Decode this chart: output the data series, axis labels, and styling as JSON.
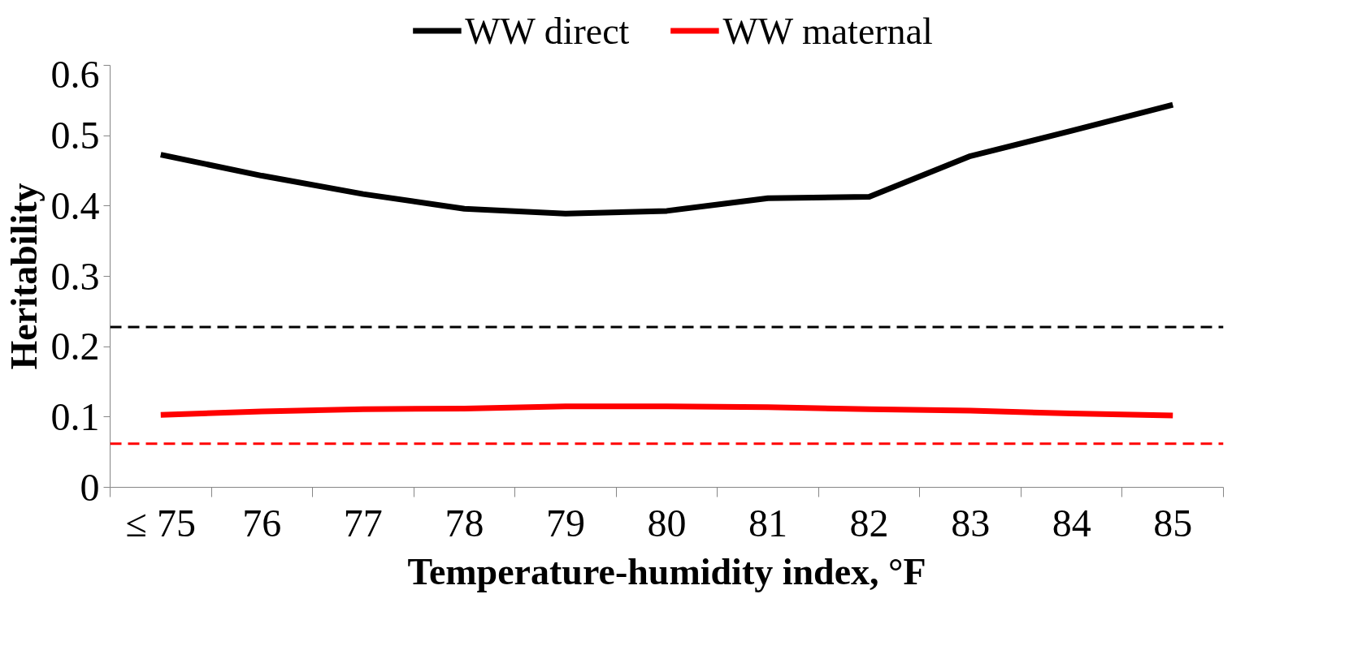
{
  "chart_data": {
    "type": "line",
    "xlabel": "Temperature-humidity index, °F",
    "ylabel": "Heritability",
    "categories": [
      "≤ 75",
      "76",
      "77",
      "78",
      "79",
      "80",
      "81",
      "82",
      "83",
      "84",
      "85"
    ],
    "series": [
      {
        "name": "WW direct",
        "color": "#000000",
        "values": [
          0.473,
          0.443,
          0.417,
          0.396,
          0.389,
          0.393,
          0.411,
          0.413,
          0.471,
          0.507,
          0.544
        ]
      },
      {
        "name": "WW maternal",
        "color": "#ff0000",
        "values": [
          0.103,
          0.108,
          0.111,
          0.112,
          0.115,
          0.115,
          0.114,
          0.111,
          0.109,
          0.105,
          0.102
        ]
      }
    ],
    "ref_lines": [
      {
        "axis": "y",
        "value": 0.228,
        "label": null,
        "color": "#000000",
        "line_style": "dashed"
      },
      {
        "axis": "y",
        "value": 0.062,
        "label": null,
        "color": "#ff0000",
        "line_style": "dashed"
      }
    ],
    "ylim": [
      0,
      0.6
    ],
    "yticks": [
      0,
      0.1,
      0.2,
      0.3,
      0.4,
      0.5,
      0.6
    ],
    "grid": false,
    "legend": "top",
    "marker": "none",
    "line_style": "solid"
  }
}
